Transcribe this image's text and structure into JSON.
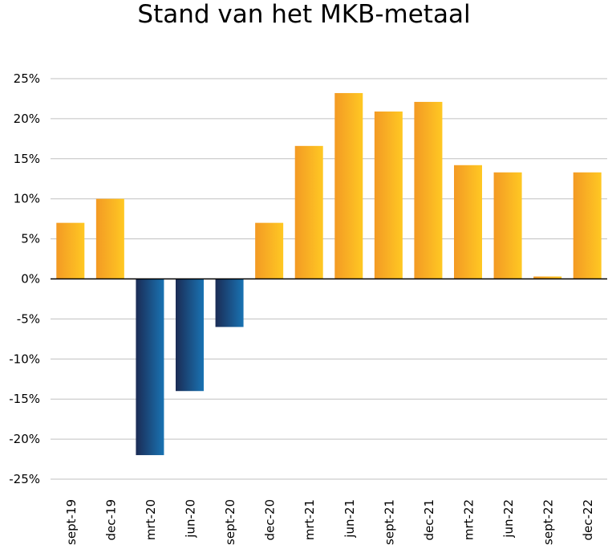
{
  "chart_data": {
    "type": "bar",
    "title": "Stand van het MKB-metaal",
    "xlabel": "",
    "ylabel": "",
    "categories": [
      "sept-19",
      "dec-19",
      "mrt-20",
      "jun-20",
      "sept-20",
      "dec-20",
      "mrt-21",
      "jun-21",
      "sept-21",
      "dec-21",
      "mrt-22",
      "jun-22",
      "sept-22",
      "dec-22"
    ],
    "values": [
      7,
      10,
      -22,
      -14,
      -6,
      7,
      16.6,
      23.2,
      20.9,
      22.1,
      14.2,
      13.3,
      0.3,
      13.3
    ],
    "ylim": [
      -25,
      25
    ],
    "yticks": [
      "25%",
      "20%",
      "15%",
      "10%",
      "5%",
      "0%",
      "-5%",
      "-10%",
      "-15%",
      "-20%",
      "-25%"
    ],
    "ytick_values": [
      25,
      20,
      15,
      10,
      5,
      0,
      -5,
      -10,
      -15,
      -20,
      -25
    ],
    "grid": true,
    "legend": "none",
    "colors": {
      "positive_start": "#f39a24",
      "positive_end": "#ffc823",
      "negative_start": "#1b2c55",
      "negative_end": "#1973b3",
      "grid": "#c0c0c0",
      "zero_line": "#000000"
    }
  }
}
